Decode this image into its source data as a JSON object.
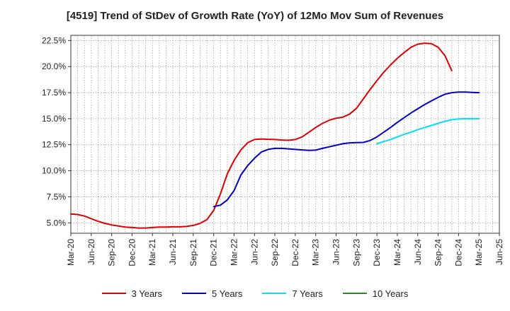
{
  "chart_data": {
    "type": "line",
    "title": "[4519]  Trend of StDev of Growth Rate (YoY) of 12Mo Mov Sum of Revenues",
    "xlabel": "",
    "ylabel": "",
    "ylim": [
      4.0,
      23.0
    ],
    "y_ticks": [
      5.0,
      7.5,
      10.0,
      12.5,
      15.0,
      17.5,
      20.0,
      22.5
    ],
    "y_tick_labels": [
      "5.0%",
      "7.5%",
      "10.0%",
      "12.5%",
      "15.0%",
      "17.5%",
      "20.0%",
      "22.5%"
    ],
    "x_tick_labels": [
      "Mar-20",
      "Jun-20",
      "Sep-20",
      "Dec-20",
      "Mar-21",
      "Jun-21",
      "Sep-21",
      "Dec-21",
      "Mar-22",
      "Jun-22",
      "Sep-22",
      "Dec-22",
      "Mar-23",
      "Jun-23",
      "Sep-23",
      "Dec-23",
      "Mar-24",
      "Jun-24",
      "Sep-24",
      "Dec-24",
      "Mar-25",
      "Jun-25"
    ],
    "x_range_months": [
      0,
      63
    ],
    "grid": true,
    "legend_position": "bottom",
    "series": [
      {
        "name": "3 Years",
        "color": "#e00000",
        "start_month": 0,
        "values": [
          5.85,
          5.8,
          5.65,
          5.4,
          5.15,
          4.95,
          4.8,
          4.7,
          4.6,
          4.55,
          4.5,
          4.5,
          4.55,
          4.6,
          4.6,
          4.62,
          4.62,
          4.65,
          4.75,
          4.95,
          5.3,
          6.2,
          7.8,
          9.7,
          11.0,
          12.0,
          12.7,
          13.0,
          13.05,
          13.02,
          13.0,
          12.95,
          12.92,
          13.0,
          13.25,
          13.7,
          14.15,
          14.55,
          14.85,
          15.05,
          15.15,
          15.45,
          16.0,
          16.9,
          17.8,
          18.65,
          19.45,
          20.15,
          20.8,
          21.35,
          21.85,
          22.15,
          22.25,
          22.2,
          21.85,
          21.05,
          19.6
        ]
      },
      {
        "name": "5 Years",
        "color": "#0000cc",
        "start_month": 21,
        "values": [
          6.55,
          6.7,
          7.2,
          8.1,
          9.6,
          10.5,
          11.2,
          11.8,
          12.05,
          12.15,
          12.15,
          12.1,
          12.05,
          12.0,
          11.95,
          11.98,
          12.15,
          12.3,
          12.45,
          12.6,
          12.68,
          12.7,
          12.72,
          12.9,
          13.25,
          13.7,
          14.15,
          14.65,
          15.1,
          15.55,
          15.95,
          16.35,
          16.7,
          17.05,
          17.35,
          17.5,
          17.55,
          17.55,
          17.52,
          17.5
        ]
      },
      {
        "name": "7 Years",
        "color": "#00e0f0",
        "start_month": 45,
        "values": [
          12.6,
          12.8,
          13.0,
          13.25,
          13.5,
          13.7,
          13.95,
          14.15,
          14.35,
          14.55,
          14.75,
          14.9,
          14.98,
          15.0,
          15.0,
          15.0
        ]
      },
      {
        "name": "10 Years",
        "color": "#228b22",
        "start_month": 0,
        "values": []
      }
    ]
  }
}
